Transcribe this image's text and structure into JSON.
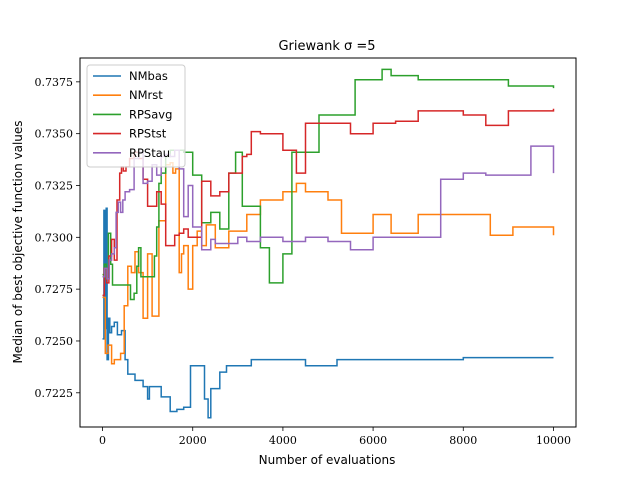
{
  "chart_data": {
    "type": "line",
    "title": "Griewank σ =5",
    "xlabel": "Number of evaluations",
    "ylabel": "Median of best objective function values",
    "xlim": [
      -500,
      10500
    ],
    "ylim": [
      0.72085,
      0.73865
    ],
    "xticks": [
      0,
      2000,
      4000,
      6000,
      8000,
      10000
    ],
    "xtick_labels": [
      "0",
      "2000",
      "4000",
      "6000",
      "8000",
      "10000"
    ],
    "yticks": [
      0.7225,
      0.725,
      0.7275,
      0.73,
      0.7325,
      0.735,
      0.7375
    ],
    "ytick_labels": [
      "0.7225",
      "0.7250",
      "0.7275",
      "0.7300",
      "0.7325",
      "0.7350",
      "0.7375"
    ],
    "grid": false,
    "legend_position": "top-left",
    "series": [
      {
        "name": "NMbas",
        "color": "#1f77b4",
        "x": [
          0,
          30,
          60,
          80,
          100,
          130,
          160,
          200,
          260,
          330,
          420,
          500,
          560,
          640,
          720,
          820,
          900,
          960,
          1000,
          1040,
          1100,
          1300,
          1400,
          1500,
          1650,
          1800,
          1950,
          2200,
          2260,
          2340,
          2400,
          2500,
          2600,
          2750,
          3000,
          3200,
          3300,
          3500,
          4500,
          5200,
          6000,
          7000,
          8000,
          9000,
          10000
        ],
        "y": [
          0.7251,
          0.7313,
          0.7256,
          0.7314,
          0.7241,
          0.7261,
          0.7254,
          0.7257,
          0.7259,
          0.7253,
          0.7255,
          0.7241,
          0.7234,
          0.7234,
          0.7231,
          0.7231,
          0.7228,
          0.7228,
          0.7222,
          0.7228,
          0.7228,
          0.7223,
          0.7223,
          0.7216,
          0.7217,
          0.7218,
          0.7238,
          0.7238,
          0.7222,
          0.7213,
          0.7227,
          0.7227,
          0.7235,
          0.7238,
          0.7238,
          0.7238,
          0.7241,
          0.7241,
          0.7238,
          0.7241,
          0.7241,
          0.7241,
          0.7242,
          0.7242,
          0.7242
        ]
      },
      {
        "name": "NMrst",
        "color": "#ff7f0e",
        "x": [
          0,
          60,
          120,
          200,
          260,
          320,
          400,
          480,
          560,
          640,
          720,
          800,
          900,
          1000,
          1100,
          1180,
          1250,
          1400,
          1500,
          1560,
          1620,
          1700,
          1750,
          1800,
          1900,
          2000,
          2100,
          2200,
          2300,
          2500,
          2800,
          3200,
          3500,
          4000,
          4300,
          4500,
          5000,
          5300,
          5600,
          6000,
          6400,
          7000,
          7500,
          8000,
          8600,
          9000,
          9100,
          10000
        ],
        "y": [
          0.7271,
          0.7244,
          0.7248,
          0.7239,
          0.7241,
          0.7241,
          0.7244,
          0.7267,
          0.7286,
          0.7283,
          0.7293,
          0.7283,
          0.7261,
          0.7292,
          0.7262,
          0.7262,
          0.7308,
          0.7335,
          0.7336,
          0.7331,
          0.7333,
          0.7283,
          0.7292,
          0.7296,
          0.7275,
          0.7296,
          0.7303,
          0.7296,
          0.7306,
          0.7295,
          0.7303,
          0.7311,
          0.7318,
          0.7322,
          0.7326,
          0.7322,
          0.7318,
          0.7302,
          0.7302,
          0.7311,
          0.7302,
          0.7311,
          0.7311,
          0.7311,
          0.7301,
          0.7301,
          0.7305,
          0.7301
        ]
      },
      {
        "name": "RPSavg",
        "color": "#2ca02c",
        "x": [
          0,
          40,
          80,
          130,
          180,
          220,
          300,
          400,
          500,
          550,
          620,
          700,
          760,
          800,
          850,
          1000,
          1150,
          1200,
          1250,
          1300,
          1400,
          1500,
          1600,
          1800,
          2000,
          2200,
          2400,
          2600,
          2800,
          2950,
          3000,
          3100,
          3300,
          3500,
          3700,
          4000,
          4200,
          4500,
          4800,
          5300,
          5600,
          6000,
          6200,
          6400,
          7000,
          7200,
          8000,
          9000,
          10000
        ],
        "y": [
          0.7282,
          0.7287,
          0.728,
          0.7302,
          0.7287,
          0.7277,
          0.7277,
          0.7277,
          0.7277,
          0.7277,
          0.727,
          0.7273,
          0.7286,
          0.7295,
          0.7281,
          0.7281,
          0.7291,
          0.7305,
          0.7326,
          0.7331,
          0.7339,
          0.7342,
          0.7342,
          0.7341,
          0.733,
          0.7307,
          0.7312,
          0.7304,
          0.7331,
          0.7341,
          0.7341,
          0.7315,
          0.7315,
          0.7295,
          0.7278,
          0.7292,
          0.7341,
          0.7341,
          0.7359,
          0.7359,
          0.7376,
          0.7376,
          0.7381,
          0.7378,
          0.7376,
          0.7376,
          0.7376,
          0.7373,
          0.7372
        ]
      },
      {
        "name": "RPStst",
        "color": "#d62728",
        "x": [
          0,
          40,
          90,
          140,
          200,
          260,
          320,
          380,
          420,
          460,
          520,
          600,
          700,
          800,
          900,
          1000,
          1100,
          1200,
          1300,
          1400,
          1500,
          1600,
          1700,
          1800,
          1900,
          2000,
          2200,
          2400,
          2600,
          2800,
          3000,
          3100,
          3200,
          3300,
          3500,
          3800,
          4000,
          4200,
          4300,
          4500,
          5000,
          5500,
          6000,
          6500,
          7000,
          7500,
          8000,
          8500,
          9000,
          10000
        ],
        "y": [
          0.7272,
          0.7285,
          0.7278,
          0.7291,
          0.7299,
          0.7289,
          0.7318,
          0.7331,
          0.7334,
          0.7332,
          0.7334,
          0.7338,
          0.7341,
          0.7338,
          0.7328,
          0.7315,
          0.7315,
          0.7322,
          0.7316,
          0.7296,
          0.7296,
          0.7301,
          0.7302,
          0.7304,
          0.73,
          0.73,
          0.7327,
          0.732,
          0.7322,
          0.7331,
          0.7331,
          0.7339,
          0.734,
          0.7351,
          0.735,
          0.735,
          0.7342,
          0.7342,
          0.7331,
          0.7355,
          0.7355,
          0.735,
          0.7355,
          0.7356,
          0.7361,
          0.7361,
          0.7359,
          0.7354,
          0.7361,
          0.7362
        ]
      },
      {
        "name": "RPStau",
        "color": "#9467bd",
        "x": [
          0,
          50,
          100,
          150,
          200,
          260,
          300,
          350,
          400,
          450,
          500,
          600,
          700,
          800,
          900,
          1000,
          1100,
          1200,
          1300,
          1400,
          1500,
          1600,
          1700,
          1800,
          1900,
          2000,
          2200,
          2400,
          2500,
          2700,
          3000,
          3200,
          3500,
          4000,
          4500,
          5000,
          5500,
          6000,
          6500,
          7000,
          7500,
          8000,
          8500,
          9000,
          9500,
          10000
        ],
        "y": [
          0.7281,
          0.7285,
          0.728,
          0.7289,
          0.7292,
          0.7295,
          0.7312,
          0.7317,
          0.7312,
          0.7318,
          0.7322,
          0.7323,
          0.7338,
          0.7341,
          0.7326,
          0.7327,
          0.7335,
          0.733,
          0.7339,
          0.734,
          0.7339,
          0.7342,
          0.7333,
          0.731,
          0.7325,
          0.7305,
          0.7294,
          0.7299,
          0.7297,
          0.7297,
          0.73,
          0.7298,
          0.73,
          0.7298,
          0.73,
          0.7298,
          0.7294,
          0.73,
          0.73,
          0.73,
          0.7328,
          0.7331,
          0.733,
          0.733,
          0.7344,
          0.7331
        ]
      }
    ]
  }
}
